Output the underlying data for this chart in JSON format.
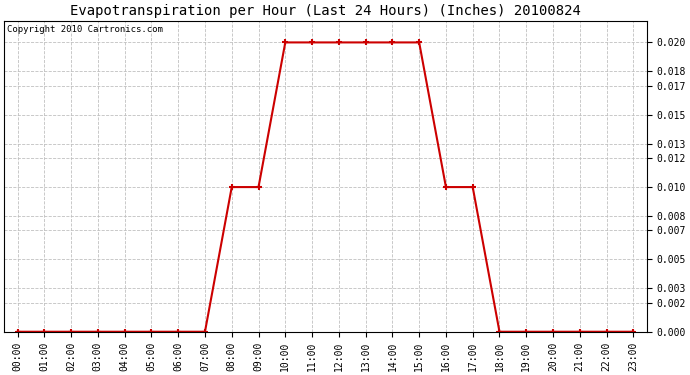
{
  "title": "Evapotranspiration per Hour (Last 24 Hours) (Inches) 20100824",
  "copyright_text": "Copyright 2010 Cartronics.com",
  "line_color": "#cc0000",
  "marker_color": "#cc0000",
  "background_color": "#ffffff",
  "grid_color": "#c0c0c0",
  "hours": [
    0,
    1,
    2,
    3,
    4,
    5,
    6,
    7,
    8,
    9,
    10,
    11,
    12,
    13,
    14,
    15,
    16,
    17,
    18,
    19,
    20,
    21,
    22,
    23
  ],
  "values": [
    0.0,
    0.0,
    0.0,
    0.0,
    0.0,
    0.0,
    0.0,
    0.0,
    0.01,
    0.01,
    0.02,
    0.02,
    0.02,
    0.02,
    0.02,
    0.02,
    0.01,
    0.01,
    0.0,
    0.0,
    0.0,
    0.0,
    0.0,
    0.0
  ],
  "xlabels": [
    "00:00",
    "01:00",
    "02:00",
    "03:00",
    "04:00",
    "05:00",
    "06:00",
    "07:00",
    "08:00",
    "09:00",
    "10:00",
    "11:00",
    "12:00",
    "13:00",
    "14:00",
    "15:00",
    "16:00",
    "17:00",
    "18:00",
    "19:00",
    "20:00",
    "21:00",
    "22:00",
    "23:00"
  ],
  "yticks": [
    0.0,
    0.002,
    0.003,
    0.005,
    0.007,
    0.008,
    0.01,
    0.012,
    0.013,
    0.015,
    0.017,
    0.018,
    0.02
  ],
  "ylim": [
    0.0,
    0.0215
  ],
  "title_fontsize": 10,
  "tick_fontsize": 7,
  "copyright_fontsize": 6.5
}
